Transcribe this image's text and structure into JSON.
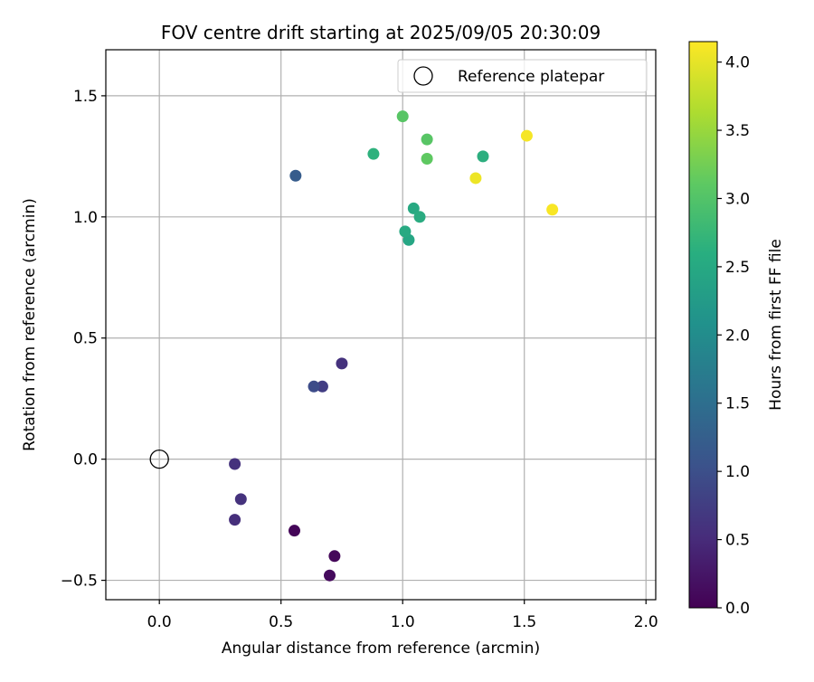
{
  "chart_data": {
    "type": "scatter",
    "title": "FOV centre drift starting at 2025/09/05 20:30:09",
    "xlabel": "Angular distance from reference (arcmin)",
    "ylabel": "Rotation from reference (arcmin)",
    "xlim": [
      -0.22,
      2.04
    ],
    "ylim": [
      -0.58,
      1.69
    ],
    "x_ticks": [
      0.0,
      0.5,
      1.0,
      1.5,
      2.0
    ],
    "x_tick_labels": [
      "0.0",
      "0.5",
      "1.0",
      "1.5",
      "2.0"
    ],
    "y_ticks": [
      -0.5,
      0.0,
      0.5,
      1.0,
      1.5
    ],
    "y_tick_labels": [
      "−0.5",
      "0.0",
      "0.5",
      "1.0",
      "1.5"
    ],
    "grid": true,
    "legend": {
      "placement": "top-right",
      "entries": [
        "Reference platepar"
      ]
    },
    "reference_point": {
      "x": 0.0,
      "y": 0.0,
      "label": "Reference platepar"
    },
    "colorbar": {
      "label": "Hours from first FF file",
      "colormap": "viridis",
      "min": 0.0,
      "max": 4.15,
      "ticks": [
        0.0,
        0.5,
        1.0,
        1.5,
        2.0,
        2.5,
        3.0,
        3.5,
        4.0
      ],
      "tick_labels": [
        "0.0",
        "0.5",
        "1.0",
        "1.5",
        "2.0",
        "2.5",
        "3.0",
        "3.5",
        "4.0"
      ]
    },
    "points": [
      {
        "x": 0.555,
        "y": -0.295,
        "hours": 0.05
      },
      {
        "x": 0.72,
        "y": -0.4,
        "hours": 0.08
      },
      {
        "x": 0.7,
        "y": -0.48,
        "hours": 0.11
      },
      {
        "x": 0.31,
        "y": -0.25,
        "hours": 0.55
      },
      {
        "x": 0.335,
        "y": -0.165,
        "hours": 0.6
      },
      {
        "x": 0.31,
        "y": -0.02,
        "hours": 0.6
      },
      {
        "x": 0.75,
        "y": 0.395,
        "hours": 0.6
      },
      {
        "x": 0.67,
        "y": 0.3,
        "hours": 0.75
      },
      {
        "x": 0.635,
        "y": 0.3,
        "hours": 0.95
      },
      {
        "x": 0.56,
        "y": 1.17,
        "hours": 1.2
      },
      {
        "x": 1.025,
        "y": 0.905,
        "hours": 2.45
      },
      {
        "x": 1.01,
        "y": 0.94,
        "hours": 2.5
      },
      {
        "x": 1.045,
        "y": 1.035,
        "hours": 2.5
      },
      {
        "x": 1.07,
        "y": 1.0,
        "hours": 2.55
      },
      {
        "x": 0.88,
        "y": 1.26,
        "hours": 2.65
      },
      {
        "x": 1.33,
        "y": 1.25,
        "hours": 2.6
      },
      {
        "x": 1.0,
        "y": 1.415,
        "hours": 3.05
      },
      {
        "x": 1.1,
        "y": 1.32,
        "hours": 3.05
      },
      {
        "x": 1.1,
        "y": 1.24,
        "hours": 3.1
      },
      {
        "x": 1.3,
        "y": 1.16,
        "hours": 4.05
      },
      {
        "x": 1.51,
        "y": 1.335,
        "hours": 4.1
      },
      {
        "x": 1.615,
        "y": 1.03,
        "hours": 4.12
      }
    ]
  }
}
